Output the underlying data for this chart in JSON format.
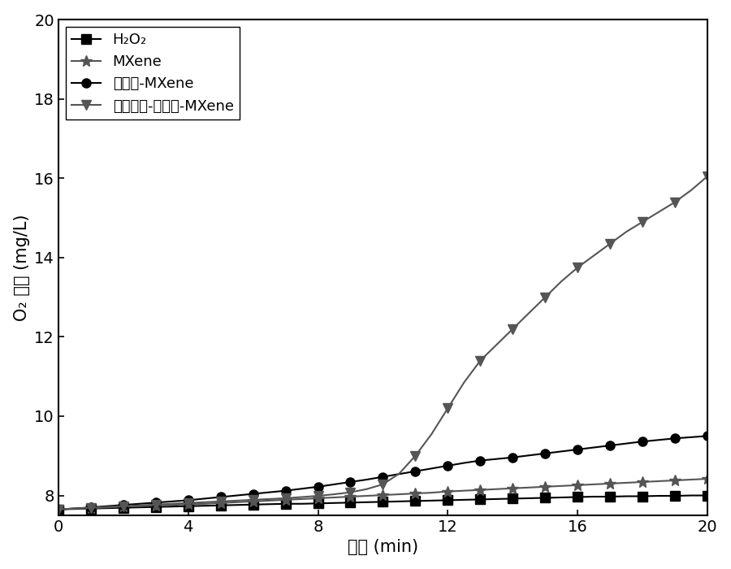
{
  "title": "",
  "xlabel": "时间 (min)",
  "ylabel": "O₂ 浓度 (mg/L)",
  "xlim": [
    0,
    20
  ],
  "ylim": [
    7.5,
    20
  ],
  "yticks": [
    8,
    10,
    12,
    14,
    16,
    18,
    20
  ],
  "xticks": [
    0,
    4,
    8,
    12,
    16,
    20
  ],
  "series": {
    "H2O2": {
      "x": [
        0,
        0.5,
        1,
        1.5,
        2,
        2.5,
        3,
        3.5,
        4,
        4.5,
        5,
        5.5,
        6,
        6.5,
        7,
        7.5,
        8,
        8.5,
        9,
        9.5,
        10,
        10.5,
        11,
        11.5,
        12,
        12.5,
        13,
        13.5,
        14,
        14.5,
        15,
        15.5,
        16,
        16.5,
        17,
        17.5,
        18,
        18.5,
        19,
        19.5,
        20
      ],
      "y": [
        7.65,
        7.66,
        7.67,
        7.68,
        7.69,
        7.7,
        7.71,
        7.72,
        7.73,
        7.74,
        7.75,
        7.76,
        7.77,
        7.78,
        7.79,
        7.79,
        7.8,
        7.81,
        7.82,
        7.83,
        7.84,
        7.85,
        7.86,
        7.87,
        7.88,
        7.89,
        7.9,
        7.91,
        7.92,
        7.93,
        7.94,
        7.95,
        7.96,
        7.97,
        7.97,
        7.98,
        7.98,
        7.99,
        7.99,
        8.0,
        8.0
      ],
      "color": "#000000",
      "marker": "s",
      "label": "H₂O₂",
      "markersize": 8,
      "linewidth": 1.5,
      "markevery": 2
    },
    "MXene": {
      "x": [
        0,
        0.5,
        1,
        1.5,
        2,
        2.5,
        3,
        3.5,
        4,
        4.5,
        5,
        5.5,
        6,
        6.5,
        7,
        7.5,
        8,
        8.5,
        9,
        9.5,
        10,
        10.5,
        11,
        11.5,
        12,
        12.5,
        13,
        13.5,
        14,
        14.5,
        15,
        15.5,
        16,
        16.5,
        17,
        17.5,
        18,
        18.5,
        19,
        19.5,
        20
      ],
      "y": [
        7.65,
        7.67,
        7.68,
        7.7,
        7.72,
        7.73,
        7.75,
        7.76,
        7.78,
        7.79,
        7.81,
        7.83,
        7.85,
        7.87,
        7.89,
        7.91,
        7.93,
        7.95,
        7.97,
        7.99,
        8.01,
        8.03,
        8.05,
        8.07,
        8.1,
        8.12,
        8.14,
        8.16,
        8.18,
        8.2,
        8.22,
        8.24,
        8.26,
        8.28,
        8.3,
        8.32,
        8.34,
        8.36,
        8.38,
        8.4,
        8.42
      ],
      "color": "#555555",
      "marker": "*",
      "label": "MXene",
      "markersize": 10,
      "linewidth": 1.5,
      "markevery": 2
    },
    "PS_MXene": {
      "x": [
        0,
        0.5,
        1,
        1.5,
        2,
        2.5,
        3,
        3.5,
        4,
        4.5,
        5,
        5.5,
        6,
        6.5,
        7,
        7.5,
        8,
        8.5,
        9,
        9.5,
        10,
        10.5,
        11,
        11.5,
        12,
        12.5,
        13,
        13.5,
        14,
        14.5,
        15,
        15.5,
        16,
        16.5,
        17,
        17.5,
        18,
        18.5,
        19,
        19.5,
        20
      ],
      "y": [
        7.65,
        7.67,
        7.7,
        7.73,
        7.76,
        7.79,
        7.82,
        7.85,
        7.88,
        7.92,
        7.96,
        8.0,
        8.04,
        8.08,
        8.12,
        8.17,
        8.22,
        8.28,
        8.34,
        8.4,
        8.47,
        8.54,
        8.61,
        8.68,
        8.75,
        8.82,
        8.88,
        8.92,
        8.96,
        9.01,
        9.06,
        9.11,
        9.16,
        9.21,
        9.26,
        9.31,
        9.36,
        9.4,
        9.44,
        9.47,
        9.5
      ],
      "color": "#000000",
      "marker": "o",
      "label": "光敏剂-MXene",
      "markersize": 8,
      "linewidth": 1.5,
      "markevery": 2
    },
    "MC_PS_MXene": {
      "x": [
        0,
        0.5,
        1,
        1.5,
        2,
        2.5,
        3,
        3.5,
        4,
        4.5,
        5,
        5.5,
        6,
        6.5,
        7,
        7.5,
        8,
        8.5,
        9,
        9.5,
        10,
        10.5,
        11,
        11.5,
        12,
        12.5,
        13,
        13.5,
        14,
        14.5,
        15,
        15.5,
        16,
        16.5,
        17,
        17.5,
        18,
        18.5,
        19,
        19.5,
        20
      ],
      "y": [
        7.65,
        7.67,
        7.69,
        7.71,
        7.73,
        7.75,
        7.77,
        7.79,
        7.81,
        7.83,
        7.85,
        7.87,
        7.89,
        7.91,
        7.93,
        7.96,
        7.99,
        8.03,
        8.08,
        8.16,
        8.28,
        8.55,
        9.0,
        9.55,
        10.2,
        10.85,
        11.4,
        11.8,
        12.2,
        12.6,
        13.0,
        13.4,
        13.75,
        14.05,
        14.35,
        14.65,
        14.9,
        15.15,
        15.4,
        15.7,
        16.05
      ],
      "color": "#555555",
      "marker": "v",
      "label": "金属团簇-光敏剂-MXene",
      "markersize": 9,
      "linewidth": 1.5,
      "markevery": 2
    }
  },
  "figure_facecolor": "#ffffff",
  "axes_facecolor": "#ffffff",
  "legend_fontsize": 13,
  "axis_label_fontsize": 15,
  "tick_fontsize": 14
}
